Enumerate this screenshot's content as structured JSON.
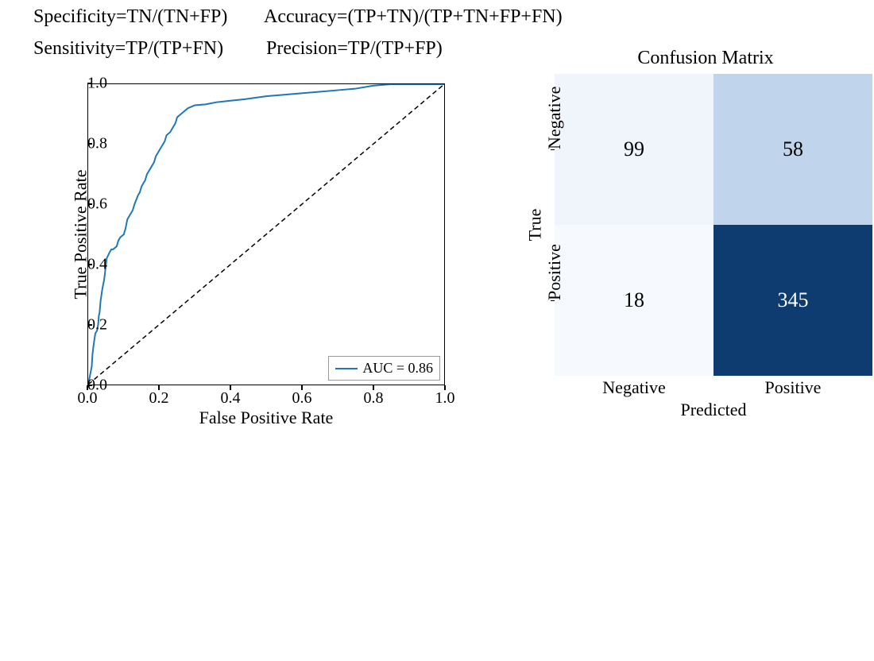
{
  "formulas": {
    "specificity": "Specificity=TN/(TN+FP)",
    "accuracy": "Accuracy=(TP+TN)/(TP+TN+FP+FN)",
    "sensitivity": "Sensitivity=TP/(TP+FN)",
    "precision": "Precision=TP/(TP+FP)"
  },
  "roc": {
    "type": "line",
    "xlabel": "False Positive Rate",
    "ylabel": "True Positive Rate",
    "xlim": [
      0,
      1
    ],
    "ylim": [
      0,
      1
    ],
    "xticks": [
      "0.0",
      "0.2",
      "0.4",
      "0.6",
      "0.8",
      "1.0"
    ],
    "yticks": [
      "0.0",
      "0.2",
      "0.4",
      "0.6",
      "0.8",
      "1.0"
    ],
    "line_color": "#1f77b4",
    "line_width": 2,
    "diag_color": "#000000",
    "diag_dash": "6 4",
    "background": "#ffffff",
    "border_color": "#000000",
    "legend_label": "AUC = 0.86",
    "curve": [
      [
        0.0,
        0.0
      ],
      [
        0.005,
        0.03
      ],
      [
        0.01,
        0.06
      ],
      [
        0.012,
        0.1
      ],
      [
        0.015,
        0.13
      ],
      [
        0.02,
        0.17
      ],
      [
        0.025,
        0.18
      ],
      [
        0.028,
        0.2
      ],
      [
        0.03,
        0.23
      ],
      [
        0.032,
        0.24
      ],
      [
        0.035,
        0.28
      ],
      [
        0.04,
        0.32
      ],
      [
        0.045,
        0.35
      ],
      [
        0.05,
        0.4
      ],
      [
        0.052,
        0.42
      ],
      [
        0.06,
        0.44
      ],
      [
        0.065,
        0.45
      ],
      [
        0.07,
        0.45
      ],
      [
        0.08,
        0.46
      ],
      [
        0.085,
        0.48
      ],
      [
        0.09,
        0.49
      ],
      [
        0.1,
        0.5
      ],
      [
        0.105,
        0.52
      ],
      [
        0.11,
        0.55
      ],
      [
        0.12,
        0.57
      ],
      [
        0.125,
        0.58
      ],
      [
        0.13,
        0.6
      ],
      [
        0.14,
        0.63
      ],
      [
        0.145,
        0.64
      ],
      [
        0.15,
        0.66
      ],
      [
        0.16,
        0.68
      ],
      [
        0.165,
        0.7
      ],
      [
        0.17,
        0.71
      ],
      [
        0.18,
        0.73
      ],
      [
        0.185,
        0.74
      ],
      [
        0.19,
        0.76
      ],
      [
        0.2,
        0.78
      ],
      [
        0.21,
        0.8
      ],
      [
        0.215,
        0.81
      ],
      [
        0.22,
        0.83
      ],
      [
        0.23,
        0.84
      ],
      [
        0.24,
        0.86
      ],
      [
        0.245,
        0.87
      ],
      [
        0.25,
        0.89
      ],
      [
        0.26,
        0.9
      ],
      [
        0.265,
        0.905
      ],
      [
        0.27,
        0.91
      ],
      [
        0.28,
        0.92
      ],
      [
        0.29,
        0.925
      ],
      [
        0.3,
        0.93
      ],
      [
        0.33,
        0.933
      ],
      [
        0.36,
        0.94
      ],
      [
        0.4,
        0.945
      ],
      [
        0.44,
        0.95
      ],
      [
        0.47,
        0.955
      ],
      [
        0.5,
        0.96
      ],
      [
        0.55,
        0.965
      ],
      [
        0.6,
        0.97
      ],
      [
        0.65,
        0.975
      ],
      [
        0.7,
        0.98
      ],
      [
        0.75,
        0.985
      ],
      [
        0.8,
        0.995
      ],
      [
        0.85,
        1.0
      ],
      [
        0.9,
        1.0
      ],
      [
        0.95,
        1.0
      ],
      [
        1.0,
        1.0
      ]
    ]
  },
  "cm": {
    "title": "Confusion Matrix",
    "xlabel": "Predicted",
    "ylabel": "True",
    "xticks": [
      "Negative",
      "Positive"
    ],
    "yticks": [
      "Negative",
      "Positive"
    ],
    "cells": [
      {
        "row": 0,
        "col": 0,
        "value": "99",
        "bg": "#eff5fb",
        "fg": "#000000"
      },
      {
        "row": 0,
        "col": 1,
        "value": "58",
        "bg": "#c0d4eb",
        "fg": "#000000"
      },
      {
        "row": 1,
        "col": 0,
        "value": "18",
        "bg": "#f6f9fd",
        "fg": "#000000"
      },
      {
        "row": 1,
        "col": 1,
        "value": "345",
        "bg": "#0e3b70",
        "fg": "#ffffff"
      }
    ]
  }
}
